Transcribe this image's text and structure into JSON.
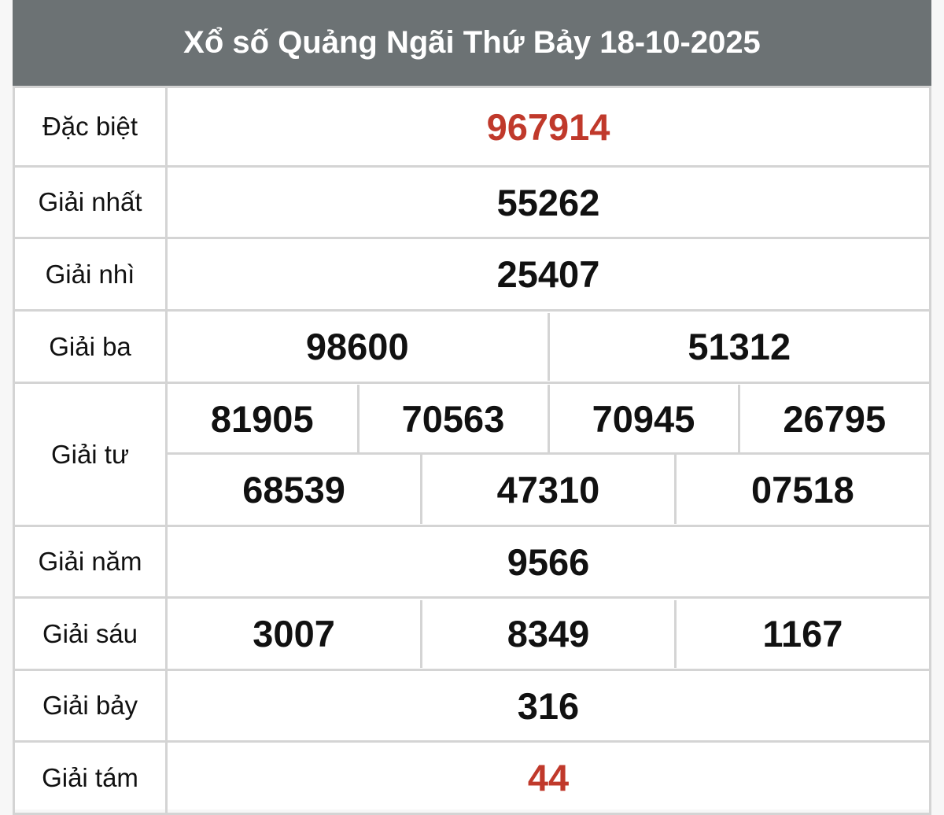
{
  "title": "Xổ số Quảng Ngãi Thứ Bảy 18-10-2025",
  "colors": {
    "header_bg": "#6c7274",
    "highlight": "#c0392b"
  },
  "prizes": [
    {
      "label": "Đặc biệt",
      "numbers": [
        "967914"
      ]
    },
    {
      "label": "Giải nhất",
      "numbers": [
        "55262"
      ]
    },
    {
      "label": "Giải nhì",
      "numbers": [
        "25407"
      ]
    },
    {
      "label": "Giải ba",
      "numbers": [
        "98600",
        "51312"
      ]
    },
    {
      "label": "Giải tư",
      "numbers": [
        "81905",
        "70563",
        "70945",
        "26795",
        "68539",
        "47310",
        "07518"
      ]
    },
    {
      "label": "Giải năm",
      "numbers": [
        "9566"
      ]
    },
    {
      "label": "Giải sáu",
      "numbers": [
        "3007",
        "8349",
        "1167"
      ]
    },
    {
      "label": "Giải bảy",
      "numbers": [
        "316"
      ]
    },
    {
      "label": "Giải tám",
      "numbers": [
        "44"
      ]
    }
  ]
}
